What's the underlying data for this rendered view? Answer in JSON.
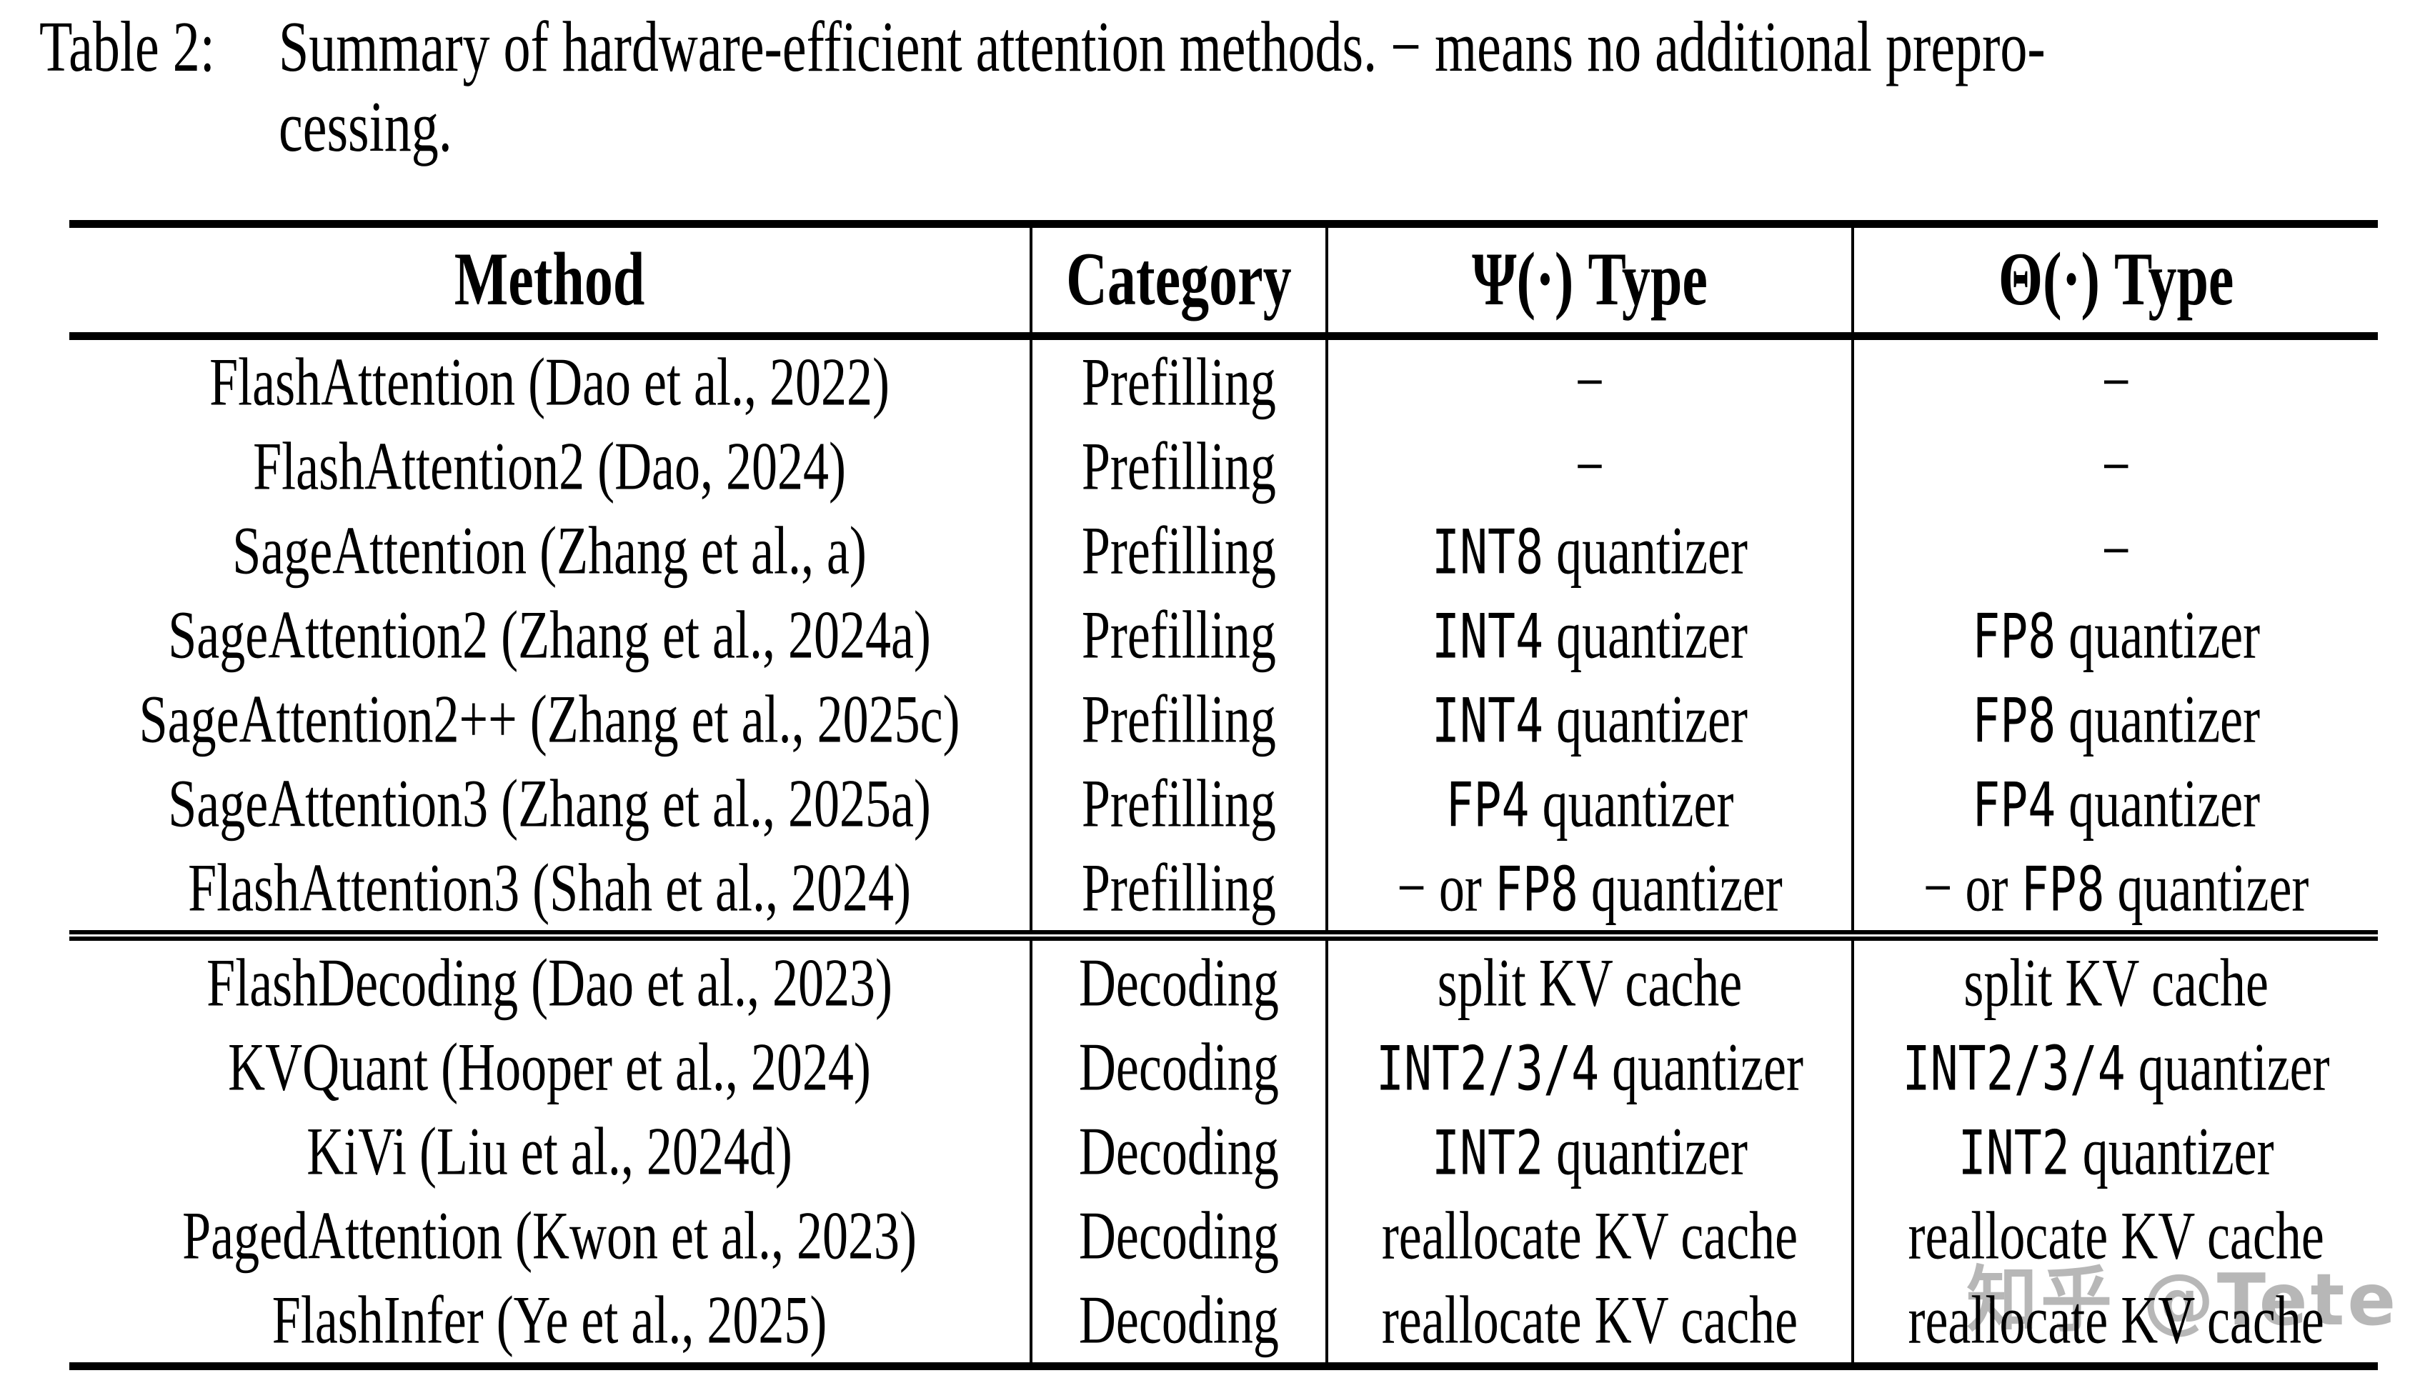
{
  "caption": {
    "label": "Table 2:",
    "line1": "Summary of hardware-efficient attention methods. − means no additional prepro-",
    "line2": "cessing."
  },
  "table": {
    "columns": [
      "Method",
      "Category",
      "Ψ(·) Type",
      "Θ(·) Type"
    ],
    "sections": [
      {
        "name": "prefilling",
        "rows": [
          {
            "method": "FlashAttention (Dao et al., 2022)",
            "category": "Prefilling",
            "psi": "−",
            "theta": "−"
          },
          {
            "method": "FlashAttention2 (Dao, 2024)",
            "category": "Prefilling",
            "psi": "−",
            "theta": "−"
          },
          {
            "method": "SageAttention (Zhang et al., a)",
            "category": "Prefilling",
            "psi": "`INT8` quantizer",
            "theta": "−"
          },
          {
            "method": "SageAttention2 (Zhang et al., 2024a)",
            "category": "Prefilling",
            "psi": "`INT4` quantizer",
            "theta": "`FP8` quantizer"
          },
          {
            "method": "SageAttention2++ (Zhang et al., 2025c)",
            "category": "Prefilling",
            "psi": "`INT4` quantizer",
            "theta": "`FP8` quantizer"
          },
          {
            "method": "SageAttention3 (Zhang et al., 2025a)",
            "category": "Prefilling",
            "psi": "`FP4` quantizer",
            "theta": "`FP4` quantizer"
          },
          {
            "method": "FlashAttention3 (Shah et al., 2024)",
            "category": "Prefilling",
            "psi": "− or `FP8` quantizer",
            "theta": "− or `FP8` quantizer"
          }
        ]
      },
      {
        "name": "decoding",
        "rows": [
          {
            "method": "FlashDecoding (Dao et al., 2023)",
            "category": "Decoding",
            "psi": "split KV cache",
            "theta": "split KV cache"
          },
          {
            "method": "KVQuant (Hooper et al., 2024)",
            "category": "Decoding",
            "psi": "`INT2/3/4` quantizer",
            "theta": "`INT2/3/4` quantizer"
          },
          {
            "method": "KiVi (Liu et al., 2024d)",
            "category": "Decoding",
            "psi": "`INT2` quantizer",
            "theta": "`INT2` quantizer"
          },
          {
            "method": "PagedAttention (Kwon et al., 2023)",
            "category": "Decoding",
            "psi": "reallocate KV cache",
            "theta": "reallocate KV cache"
          },
          {
            "method": "FlashInfer (Ye et al., 2025)",
            "category": "Decoding",
            "psi": "reallocate KV cache",
            "theta": "reallocate KV cache"
          }
        ]
      }
    ]
  },
  "watermark": {
    "text": "知乎 @Tete",
    "color": "#ababab"
  },
  "colors": {
    "text": "#000000",
    "rule": "#000000",
    "background": "#ffffff"
  }
}
